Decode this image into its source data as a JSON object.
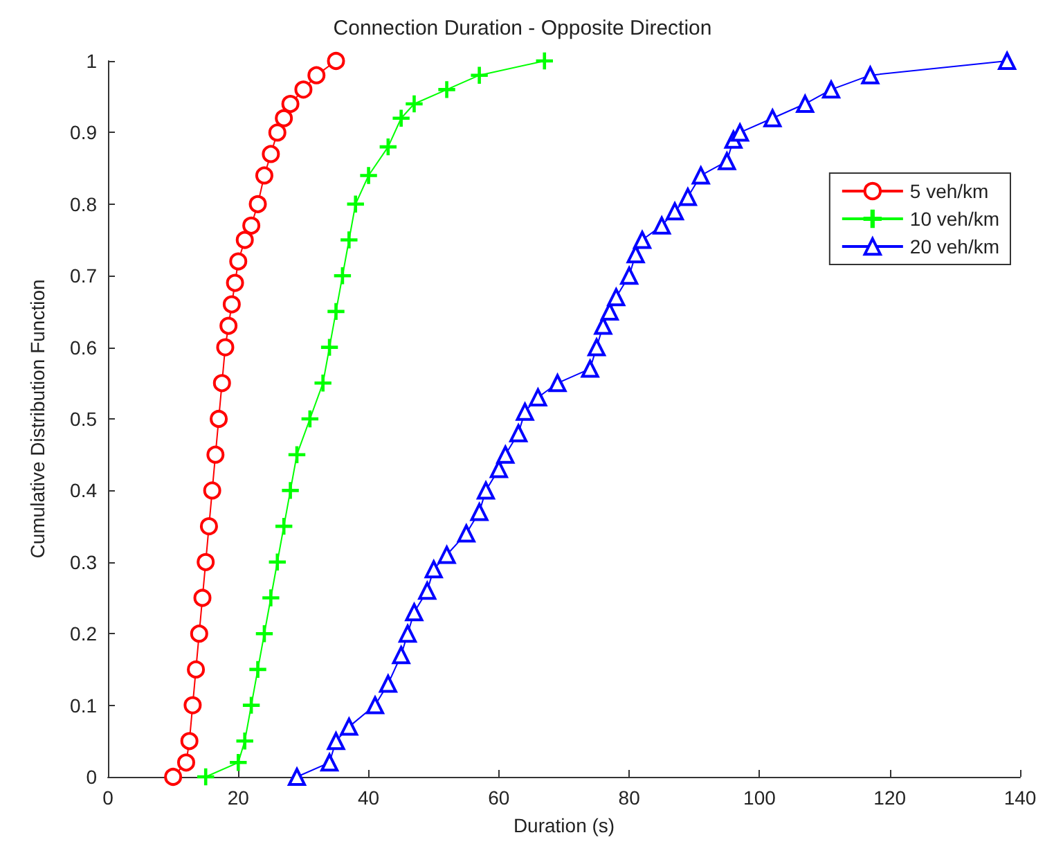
{
  "chart_data": {
    "type": "line",
    "title": "Connection Duration - Opposite Direction",
    "xlabel": "Duration (s)",
    "ylabel": "Cumulative Distribution Function",
    "xlim": [
      0,
      140
    ],
    "xticks": [
      0,
      20,
      40,
      60,
      80,
      100,
      120,
      140
    ],
    "ylim": [
      0,
      1
    ],
    "yticks": [
      0,
      0.1,
      0.2,
      0.3,
      0.4,
      0.5,
      0.6,
      0.7,
      0.8,
      0.9,
      1
    ],
    "grid": false,
    "legend": "top right",
    "line_style": "solid",
    "series": [
      {
        "name": "5 veh/km",
        "color": "#ff0000",
        "marker": "circle",
        "x": [
          10,
          12,
          12.5,
          13,
          13.5,
          14,
          14.5,
          15,
          15.5,
          16,
          16.5,
          17,
          17.5,
          18,
          18.5,
          19,
          19.5,
          20,
          21,
          22,
          23,
          24,
          25,
          26,
          27,
          28,
          30,
          32,
          35
        ],
        "values": [
          0,
          0.02,
          0.05,
          0.1,
          0.15,
          0.2,
          0.25,
          0.3,
          0.35,
          0.4,
          0.45,
          0.5,
          0.55,
          0.6,
          0.63,
          0.66,
          0.69,
          0.72,
          0.75,
          0.77,
          0.8,
          0.84,
          0.87,
          0.9,
          0.92,
          0.94,
          0.96,
          0.98,
          1
        ]
      },
      {
        "name": "10 veh/km",
        "color": "#00ff00",
        "marker": "cross",
        "x": [
          15,
          20,
          21,
          22,
          23,
          24,
          25,
          26,
          27,
          28,
          29,
          31,
          33,
          34,
          35,
          36,
          37,
          38,
          40,
          43,
          45,
          47,
          52,
          57,
          67
        ],
        "values": [
          0,
          0.02,
          0.05,
          0.1,
          0.15,
          0.2,
          0.25,
          0.3,
          0.35,
          0.4,
          0.45,
          0.5,
          0.55,
          0.6,
          0.65,
          0.7,
          0.75,
          0.8,
          0.84,
          0.88,
          0.92,
          0.94,
          0.96,
          0.98,
          1
        ]
      },
      {
        "name": "20 veh/km",
        "color": "#0000ff",
        "marker": "triangle",
        "x": [
          29,
          34,
          35,
          37,
          41,
          43,
          45,
          46,
          47,
          49,
          50,
          52,
          55,
          57,
          58,
          60,
          61,
          63,
          64,
          66,
          69,
          74,
          75,
          76,
          77,
          78,
          80,
          81,
          82,
          85,
          87,
          89,
          91,
          95,
          96,
          97,
          102,
          107,
          111,
          117,
          138
        ],
        "values": [
          0,
          0.02,
          0.05,
          0.07,
          0.1,
          0.13,
          0.17,
          0.2,
          0.23,
          0.26,
          0.29,
          0.31,
          0.34,
          0.37,
          0.4,
          0.43,
          0.45,
          0.48,
          0.51,
          0.53,
          0.55,
          0.57,
          0.6,
          0.63,
          0.65,
          0.67,
          0.7,
          0.73,
          0.75,
          0.77,
          0.79,
          0.81,
          0.84,
          0.86,
          0.89,
          0.9,
          0.92,
          0.94,
          0.96,
          0.98,
          1
        ]
      }
    ]
  }
}
